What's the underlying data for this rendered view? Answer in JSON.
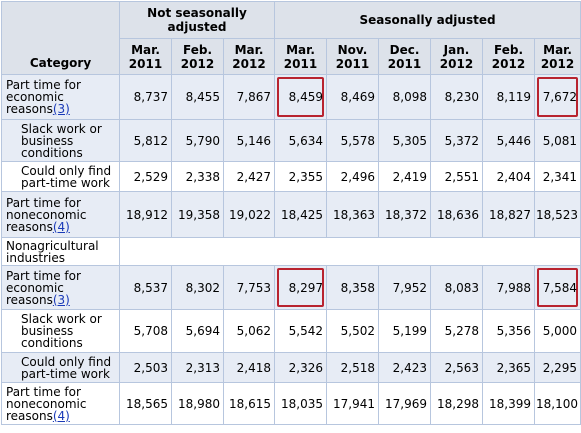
{
  "header": {
    "category": "Category",
    "group_nsa": "Not seasonally adjusted",
    "group_sa": "Seasonally adjusted",
    "months": [
      {
        "m": "Mar.",
        "y": "2011"
      },
      {
        "m": "Feb.",
        "y": "2012"
      },
      {
        "m": "Mar.",
        "y": "2012"
      },
      {
        "m": "Mar.",
        "y": "2011"
      },
      {
        "m": "Nov.",
        "y": "2011"
      },
      {
        "m": "Dec.",
        "y": "2011"
      },
      {
        "m": "Jan.",
        "y": "2012"
      },
      {
        "m": "Feb.",
        "y": "2012"
      },
      {
        "m": "Mar.",
        "y": "2012"
      }
    ]
  },
  "rows": [
    {
      "label": "Part time for economic reasons",
      "footnote": "(3)",
      "values": [
        "8,737",
        "8,455",
        "7,867",
        "8,459",
        "8,469",
        "8,098",
        "8,230",
        "8,119",
        "7,672"
      ]
    },
    {
      "label": "Slack work or business conditions",
      "values": [
        "5,812",
        "5,790",
        "5,146",
        "5,634",
        "5,578",
        "5,305",
        "5,372",
        "5,446",
        "5,081"
      ]
    },
    {
      "label": "Could only find part-time work",
      "values": [
        "2,529",
        "2,338",
        "2,427",
        "2,355",
        "2,496",
        "2,419",
        "2,551",
        "2,404",
        "2,341"
      ]
    },
    {
      "label": "Part time for noneconomic reasons",
      "footnote": "(4)",
      "values": [
        "18,912",
        "19,358",
        "19,022",
        "18,425",
        "18,363",
        "18,372",
        "18,636",
        "18,827",
        "18,523"
      ]
    },
    {
      "label": "Nonagricultural industries"
    },
    {
      "label": "Part time for economic reasons",
      "footnote": "(3)",
      "values": [
        "8,537",
        "8,302",
        "7,753",
        "8,297",
        "8,358",
        "7,952",
        "8,083",
        "7,988",
        "7,584"
      ]
    },
    {
      "label": "Slack work or business conditions",
      "values": [
        "5,708",
        "5,694",
        "5,062",
        "5,542",
        "5,502",
        "5,199",
        "5,278",
        "5,356",
        "5,000"
      ]
    },
    {
      "label": "Could only find part-time work",
      "values": [
        "2,503",
        "2,313",
        "2,418",
        "2,326",
        "2,518",
        "2,423",
        "2,563",
        "2,365",
        "2,295"
      ]
    },
    {
      "label": "Part time for noneconomic reasons",
      "footnote": "(4)",
      "values": [
        "18,565",
        "18,980",
        "18,615",
        "18,035",
        "17,941",
        "17,969",
        "18,298",
        "18,399",
        "18,100"
      ]
    }
  ],
  "highlight_color": "#b8232f"
}
